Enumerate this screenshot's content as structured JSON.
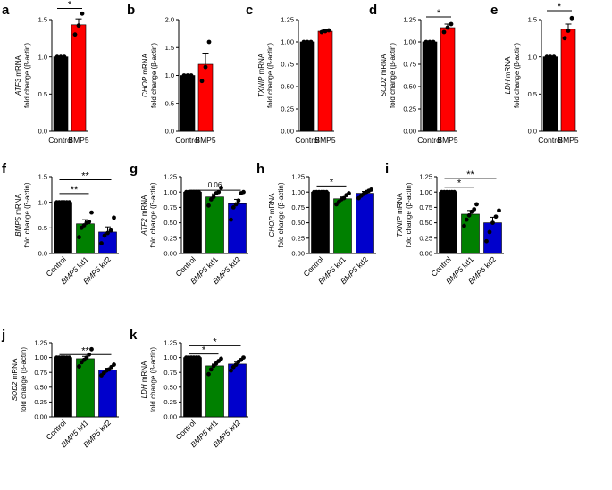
{
  "figure": {
    "panels": [
      {
        "letter": "a"
      },
      {
        "letter": "b"
      },
      {
        "letter": "c"
      },
      {
        "letter": "d"
      },
      {
        "letter": "e"
      },
      {
        "letter": "f"
      },
      {
        "letter": "g"
      },
      {
        "letter": "h"
      },
      {
        "letter": "i"
      },
      {
        "letter": "j"
      },
      {
        "letter": "k"
      }
    ]
  },
  "colors": {
    "control": "#000000",
    "bmp5": "#ff0000",
    "kd1": "#008000",
    "kd2": "#0000cc"
  },
  "chart_data": [
    {
      "panel": "a",
      "type": "bar",
      "gene": "ATF3",
      "ylabel_suffix": " mRNA",
      "ylabel_line2": "fold change (β-actin)",
      "ylim": [
        0,
        1.5
      ],
      "yticks": [
        0,
        0.5,
        1.0,
        1.5
      ],
      "ytick_labels": [
        "0.0",
        "0.5",
        "1.0",
        "1.5"
      ],
      "categories": [
        {
          "label": "Control"
        },
        {
          "label": "BMP5"
        }
      ],
      "values": [
        1.0,
        1.43
      ],
      "errors": [
        0,
        0.08
      ],
      "points": [
        [
          1,
          1,
          1
        ],
        [
          1.3,
          1.42,
          1.58
        ]
      ],
      "colors": [
        "#000000",
        "#ff0000"
      ],
      "significance": [
        {
          "from": 0,
          "to": 1,
          "text": "*",
          "y": 1.65
        }
      ]
    },
    {
      "panel": "b",
      "type": "bar",
      "gene": "CHOP",
      "ylabel_suffix": " mRNA",
      "ylabel_line2": "fold change (β-actin)",
      "ylim": [
        0,
        2.0
      ],
      "yticks": [
        0,
        0.5,
        1.0,
        1.5,
        2.0
      ],
      "ytick_labels": [
        "0.0",
        "0.5",
        "1.0",
        "1.5",
        "2.0"
      ],
      "categories": [
        {
          "label": "Control"
        },
        {
          "label": "BMP5"
        }
      ],
      "values": [
        1.0,
        1.2
      ],
      "errors": [
        0,
        0.2
      ],
      "points": [
        [
          1,
          1,
          1
        ],
        [
          0.9,
          1.15,
          1.6
        ]
      ],
      "colors": [
        "#000000",
        "#ff0000"
      ],
      "significance": []
    },
    {
      "panel": "c",
      "type": "bar",
      "gene": "TXNIP",
      "ylabel_suffix": " mRNA",
      "ylabel_line2": "fold change (β-actin)",
      "ylim": [
        0,
        1.25
      ],
      "yticks": [
        0,
        0.25,
        0.5,
        0.75,
        1.0,
        1.25
      ],
      "ytick_labels": [
        "0.00",
        "0.25",
        "0.50",
        "0.75",
        "1.00",
        "1.25"
      ],
      "categories": [
        {
          "label": "Control"
        },
        {
          "label": "BMP5"
        }
      ],
      "values": [
        1.0,
        1.12
      ],
      "errors": [
        0,
        0.015
      ],
      "points": [
        [
          1,
          1,
          1
        ],
        [
          1.11,
          1.12,
          1.13
        ]
      ],
      "colors": [
        "#000000",
        "#ff0000"
      ],
      "significance": []
    },
    {
      "panel": "d",
      "type": "bar",
      "gene": "SOD2",
      "ylabel_suffix": " mRNA",
      "ylabel_line2": "fold change (β-actin)",
      "ylim": [
        0,
        1.25
      ],
      "yticks": [
        0,
        0.25,
        0.5,
        0.75,
        1.0,
        1.25
      ],
      "ytick_labels": [
        "0.00",
        "0.25",
        "0.50",
        "0.75",
        "1.00",
        "1.25"
      ],
      "categories": [
        {
          "label": "Control"
        },
        {
          "label": "BMP5"
        }
      ],
      "values": [
        1.0,
        1.16
      ],
      "errors": [
        0,
        0.04
      ],
      "points": [
        [
          1,
          1,
          1
        ],
        [
          1.11,
          1.16,
          1.2
        ]
      ],
      "colors": [
        "#000000",
        "#ff0000"
      ],
      "significance": [
        {
          "from": 0,
          "to": 1,
          "text": "*",
          "y": 1.28
        }
      ]
    },
    {
      "panel": "e",
      "type": "bar",
      "gene": "LDH",
      "ylabel_suffix": " mRNA",
      "ylabel_line2": "fold change (β-actin)",
      "ylim": [
        0,
        1.5
      ],
      "yticks": [
        0,
        0.5,
        1.0,
        1.5
      ],
      "ytick_labels": [
        "0.0",
        "0.5",
        "1.0",
        "1.5"
      ],
      "categories": [
        {
          "label": "Control"
        },
        {
          "label": "BMP5"
        }
      ],
      "values": [
        1.0,
        1.37
      ],
      "errors": [
        0,
        0.07
      ],
      "points": [
        [
          1,
          1,
          1
        ],
        [
          1.25,
          1.35,
          1.52
        ]
      ],
      "colors": [
        "#000000",
        "#ff0000"
      ],
      "significance": [
        {
          "from": 0,
          "to": 1,
          "text": "*",
          "y": 1.62
        }
      ]
    },
    {
      "panel": "f",
      "type": "bar",
      "gene": "BMP5",
      "ylabel_suffix": " mRNA",
      "ylabel_line2": "fold change (β-actin)",
      "ylim": [
        0,
        1.5
      ],
      "yticks": [
        0,
        0.5,
        1.0,
        1.5
      ],
      "ytick_labels": [
        "0.0",
        "0.5",
        "1.0",
        "1.5"
      ],
      "categories": [
        {
          "label": "Control"
        },
        {
          "gene": "BMP5",
          "suffix": " kd1"
        },
        {
          "gene": "BMP5",
          "suffix": " kd2"
        }
      ],
      "values": [
        1.0,
        0.58,
        0.42
      ],
      "errors": [
        0,
        0.08,
        0.1
      ],
      "points": [
        [
          1,
          1,
          1,
          1,
          1,
          1
        ],
        [
          0.32,
          0.5,
          0.55,
          0.6,
          0.62,
          0.8
        ],
        [
          0.2,
          0.35,
          0.4,
          0.45,
          0.7
        ]
      ],
      "colors": [
        "#000000",
        "#008000",
        "#0000cc"
      ],
      "significance": [
        {
          "from": 0,
          "to": 1,
          "text": "**",
          "y": 1.17
        },
        {
          "from": 0,
          "to": 2,
          "text": "**",
          "y": 1.44
        }
      ]
    },
    {
      "panel": "g",
      "type": "bar",
      "gene": "ATF2",
      "ylabel_suffix": " mRNA",
      "ylabel_line2": "fold change (β-actin)",
      "ylim": [
        0,
        1.25
      ],
      "yticks": [
        0,
        0.25,
        0.5,
        0.75,
        1.0,
        1.25
      ],
      "ytick_labels": [
        "0.00",
        "0.25",
        "0.50",
        "0.75",
        "1.00",
        "1.25"
      ],
      "categories": [
        {
          "label": "Control"
        },
        {
          "gene": "BMP5",
          "suffix": " kd1"
        },
        {
          "gene": "BMP5",
          "suffix": " kd2"
        }
      ],
      "values": [
        1.0,
        0.92,
        0.81
      ],
      "errors": [
        0,
        0.05,
        0.07
      ],
      "points": [
        [
          1,
          1,
          1,
          1,
          1,
          1
        ],
        [
          0.78,
          0.88,
          0.92,
          0.98,
          1.0,
          1.07
        ],
        [
          0.55,
          0.75,
          0.8,
          0.86,
          0.98,
          1.0
        ]
      ],
      "colors": [
        "#000000",
        "#008000",
        "#0000cc"
      ],
      "significance": [
        {
          "from": 0,
          "to": 2,
          "text": "0.06",
          "y": 1.03
        }
      ]
    },
    {
      "panel": "h",
      "type": "bar",
      "gene": "CHOP",
      "ylabel_suffix": " mRNA",
      "ylabel_line2": "fold change (β-actin)",
      "ylim": [
        0,
        1.25
      ],
      "yticks": [
        0,
        0.25,
        0.5,
        0.75,
        1.0,
        1.25
      ],
      "ytick_labels": [
        "0.00",
        "0.25",
        "0.50",
        "0.75",
        "1.00",
        "1.25"
      ],
      "categories": [
        {
          "label": "Control"
        },
        {
          "gene": "BMP5",
          "suffix": " kd1"
        },
        {
          "gene": "BMP5",
          "suffix": " kd2"
        }
      ],
      "values": [
        1.0,
        0.89,
        0.98
      ],
      "errors": [
        0,
        0.03,
        0.03
      ],
      "points": [
        [
          1,
          1,
          1,
          1,
          1,
          1
        ],
        [
          0.8,
          0.84,
          0.88,
          0.9,
          0.95,
          0.98
        ],
        [
          0.9,
          0.94,
          0.97,
          1.0,
          1.02,
          1.04
        ]
      ],
      "colors": [
        "#000000",
        "#008000",
        "#0000cc"
      ],
      "significance": [
        {
          "from": 0,
          "to": 1,
          "text": "*",
          "y": 1.1
        }
      ]
    },
    {
      "panel": "i",
      "type": "bar",
      "gene": "TXNIP",
      "ylabel_suffix": " mRNA",
      "ylabel_line2": "fold change (β-actin)",
      "ylim": [
        0,
        1.25
      ],
      "yticks": [
        0,
        0.25,
        0.5,
        0.75,
        1.0,
        1.25
      ],
      "ytick_labels": [
        "0.00",
        "0.25",
        "0.50",
        "0.75",
        "1.00",
        "1.25"
      ],
      "categories": [
        {
          "label": "Control"
        },
        {
          "gene": "BMP5",
          "suffix": " kd1"
        },
        {
          "gene": "BMP5",
          "suffix": " kd2"
        }
      ],
      "values": [
        1.0,
        0.64,
        0.5
      ],
      "errors": [
        0,
        0.06,
        0.09
      ],
      "points": [
        [
          1,
          1,
          1,
          1,
          1,
          1
        ],
        [
          0.45,
          0.55,
          0.62,
          0.68,
          0.72,
          0.8
        ],
        [
          0.2,
          0.35,
          0.5,
          0.6,
          0.7
        ]
      ],
      "colors": [
        "#000000",
        "#008000",
        "#0000cc"
      ],
      "significance": [
        {
          "from": 0,
          "to": 1,
          "text": "*",
          "y": 1.08
        },
        {
          "from": 0,
          "to": 2,
          "text": "**",
          "y": 1.22
        }
      ]
    },
    {
      "panel": "j",
      "type": "bar",
      "gene": "SOD2",
      "ylabel_suffix": " mRNA",
      "ylabel_line2": "fold change (β-actin)",
      "ylim": [
        0,
        1.25
      ],
      "yticks": [
        0,
        0.25,
        0.5,
        0.75,
        1.0,
        1.25
      ],
      "ytick_labels": [
        "0.00",
        "0.25",
        "0.50",
        "0.75",
        "1.00",
        "1.25"
      ],
      "categories": [
        {
          "label": "Control"
        },
        {
          "gene": "BMP5",
          "suffix": " kd1"
        },
        {
          "gene": "BMP5",
          "suffix": " kd2"
        }
      ],
      "values": [
        1.0,
        0.98,
        0.79
      ],
      "errors": [
        0,
        0.04,
        0.03
      ],
      "points": [
        [
          1,
          1,
          1,
          1,
          1,
          1
        ],
        [
          0.85,
          0.92,
          0.96,
          1.0,
          1.05,
          1.14
        ],
        [
          0.7,
          0.74,
          0.78,
          0.8,
          0.84,
          0.88
        ]
      ],
      "colors": [
        "#000000",
        "#008000",
        "#0000cc"
      ],
      "significance": [
        {
          "from": 0,
          "to": 2,
          "text": "**",
          "y": 1.05
        }
      ]
    },
    {
      "panel": "k",
      "type": "bar",
      "gene": "LDH",
      "ylabel_suffix": " mRNA",
      "ylabel_line2": "fold change (β-actin)",
      "ylim": [
        0,
        1.25
      ],
      "yticks": [
        0,
        0.25,
        0.5,
        0.75,
        1.0,
        1.25
      ],
      "ytick_labels": [
        "0.00",
        "0.25",
        "0.50",
        "0.75",
        "1.00",
        "1.25"
      ],
      "categories": [
        {
          "label": "Control"
        },
        {
          "gene": "BMP5",
          "suffix": " kd1"
        },
        {
          "gene": "BMP5",
          "suffix": " kd2"
        }
      ],
      "values": [
        1.0,
        0.86,
        0.89
      ],
      "errors": [
        0,
        0.03,
        0.04
      ],
      "points": [
        [
          1,
          1,
          1,
          1,
          1,
          1
        ],
        [
          0.72,
          0.8,
          0.86,
          0.9,
          0.94,
          0.98
        ],
        [
          0.78,
          0.84,
          0.88,
          0.93,
          0.96,
          1.0
        ]
      ],
      "colors": [
        "#000000",
        "#008000",
        "#0000cc"
      ],
      "significance": [
        {
          "from": 0,
          "to": 1,
          "text": "*",
          "y": 1.06
        },
        {
          "from": 0,
          "to": 2,
          "text": "*",
          "y": 1.2
        }
      ]
    }
  ]
}
